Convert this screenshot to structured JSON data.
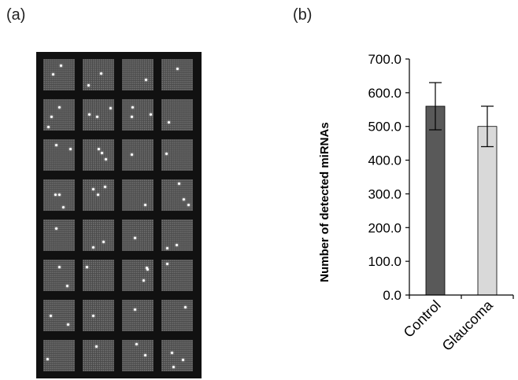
{
  "panels": {
    "a": "(a)",
    "b": "(b)"
  },
  "microarray": {
    "rows": 8,
    "cols": 4,
    "colors": {
      "background": "#111111",
      "block": "#4a4a4a",
      "spot": "#ffffff"
    }
  },
  "chart_data": {
    "type": "bar",
    "title": "",
    "xlabel": "",
    "ylabel": "Number of detected miRNAs",
    "categories": [
      "Control",
      "Glaucoma"
    ],
    "values": [
      560,
      500
    ],
    "error": [
      70,
      60
    ],
    "colors": [
      "#595959",
      "#d9d9d9"
    ],
    "ylim": [
      0,
      700
    ],
    "yticks": [
      "0.0",
      "100.0",
      "200.0",
      "300.0",
      "400.0",
      "500.0",
      "600.0",
      "700.0"
    ],
    "ytick_values": [
      0,
      100,
      200,
      300,
      400,
      500,
      600,
      700
    ],
    "grid": false
  }
}
